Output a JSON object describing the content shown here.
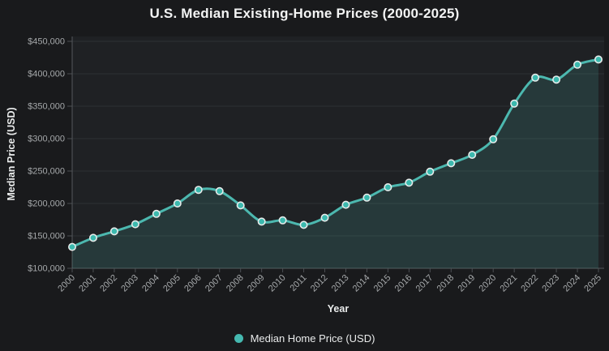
{
  "page": {
    "background": "#191a1c"
  },
  "chart_data": {
    "type": "area",
    "title": "U.S. Median Existing-Home Prices (2000-2025)",
    "xlabel": "Year",
    "ylabel": "Median Price (USD)",
    "legend_position": "bottom",
    "grid": "horizontal",
    "x_tick_rotation": -45,
    "categories": [
      "2000",
      "2001",
      "2002",
      "2003",
      "2004",
      "2005",
      "2006",
      "2007",
      "2008",
      "2009",
      "2010",
      "2011",
      "2012",
      "2013",
      "2014",
      "2015",
      "2016",
      "2017",
      "2018",
      "2019",
      "2020",
      "2021",
      "2022",
      "2023",
      "2024",
      "2025"
    ],
    "series": [
      {
        "name": "Median Home Price (USD)",
        "values": [
          133000,
          147000,
          157000,
          168000,
          184000,
          200000,
          221000,
          219000,
          197000,
          172000,
          174000,
          167000,
          178000,
          198000,
          209000,
          225000,
          232000,
          249000,
          262000,
          275000,
          299000,
          354000,
          394000,
          391000,
          414000,
          422000
        ]
      }
    ],
    "ylim": [
      100000,
      450000
    ],
    "y_tick_step": 50000,
    "y_tick_labels": [
      "$100,000",
      "$150,000",
      "$200,000",
      "$250,000",
      "$300,000",
      "$350,000",
      "$400,000",
      "$450,000"
    ],
    "legend": [
      {
        "label": "Median Home Price (USD)",
        "color": "#45b9b0"
      }
    ]
  },
  "colors": {
    "accent": "#45b9b0",
    "line": "#4cb8af",
    "marker_fill": "#3cb9ae",
    "marker_stroke": "#e6ebea",
    "area_fill": "rgba(77,184,176,0.16)",
    "plot_background": "#1f2124",
    "page_background": "#191a1c",
    "gridline": "#2e3134",
    "axis_line": "#54585b",
    "tick_color": "#4a4e52",
    "tick_text": "#a5a8aa",
    "title_text": "#f3f4f4"
  }
}
